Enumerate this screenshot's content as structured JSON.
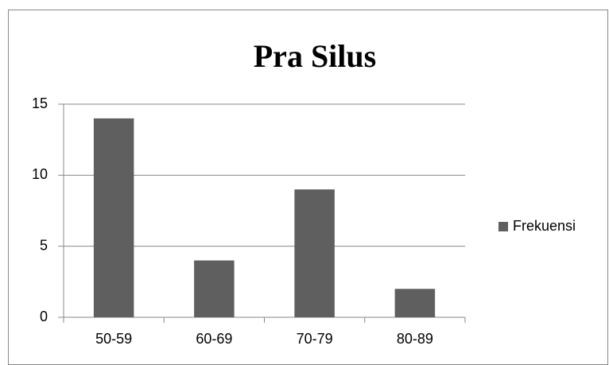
{
  "chart_data": {
    "type": "bar",
    "title": "Pra Silus",
    "categories": [
      "50-59",
      "60-69",
      "70-79",
      "80-89"
    ],
    "series": [
      {
        "name": "Frekuensi",
        "color": "#5f5f5f",
        "values": [
          14,
          4,
          9,
          2
        ]
      }
    ],
    "ylim": [
      0,
      15
    ],
    "yticks": [
      0,
      5,
      10,
      15
    ],
    "grid": true,
    "legend": "right"
  }
}
